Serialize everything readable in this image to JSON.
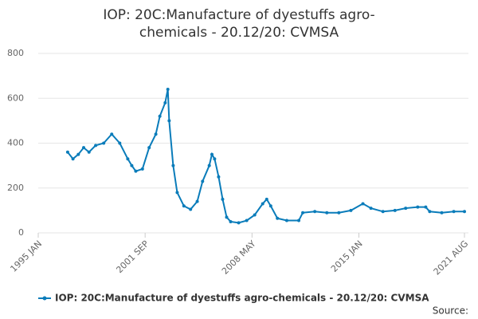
{
  "chart_data": {
    "type": "line",
    "title": "IOP: 20C:Manufacture of dyestuffs agro-chemicals - 20.12/20: CVMSA",
    "source": "Source:",
    "x": [
      "1996-11",
      "1997-03",
      "1997-07",
      "1997-11",
      "1998-03",
      "1998-08",
      "1999-02",
      "1999-08",
      "2000-02",
      "2000-08",
      "2000-11",
      "2001-02",
      "2001-07",
      "2001-12",
      "2002-05",
      "2002-08",
      "2002-12",
      "2003-02",
      "2003-03",
      "2003-06",
      "2003-09",
      "2004-02",
      "2004-07",
      "2004-12",
      "2005-04",
      "2005-09",
      "2005-11",
      "2006-01",
      "2006-04",
      "2006-07",
      "2006-10",
      "2007-01",
      "2007-07",
      "2008-01",
      "2008-07",
      "2009-01",
      "2009-04",
      "2009-07",
      "2009-12",
      "2010-07",
      "2011-04",
      "2011-07",
      "2012-04",
      "2013-01",
      "2013-10",
      "2014-07",
      "2015-04",
      "2015-10",
      "2016-07",
      "2017-04",
      "2017-12",
      "2018-09",
      "2019-03",
      "2019-06",
      "2020-03",
      "2020-12",
      "2021-08"
    ],
    "series": [
      {
        "name": "IOP: 20C:Manufacture of dyestuffs agro-chemicals - 20.12/20: CVMSA",
        "color": "#0a7cba",
        "values": [
          360,
          330,
          350,
          380,
          360,
          390,
          400,
          440,
          400,
          330,
          300,
          275,
          285,
          380,
          440,
          520,
          580,
          640,
          500,
          300,
          180,
          120,
          105,
          140,
          230,
          300,
          350,
          330,
          250,
          150,
          70,
          50,
          45,
          55,
          80,
          130,
          150,
          120,
          65,
          55,
          55,
          90,
          95,
          90,
          90,
          100,
          130,
          110,
          95,
          100,
          110,
          115,
          115,
          95,
          90,
          95,
          95
        ]
      }
    ],
    "xlim": [
      "1995-01",
      "2021-08"
    ],
    "xticks": [
      {
        "value": "1995-01",
        "label": "1995 JAN"
      },
      {
        "value": "2001-09",
        "label": "2001 SEP"
      },
      {
        "value": "2008-05",
        "label": "2008 MAY"
      },
      {
        "value": "2015-01",
        "label": "2015 JAN"
      },
      {
        "value": "2021-08",
        "label": "2021 AUG"
      }
    ],
    "ylim": [
      0,
      800
    ],
    "yticks": [
      0,
      200,
      400,
      600,
      800
    ],
    "grid": true,
    "legend": "bottom"
  }
}
